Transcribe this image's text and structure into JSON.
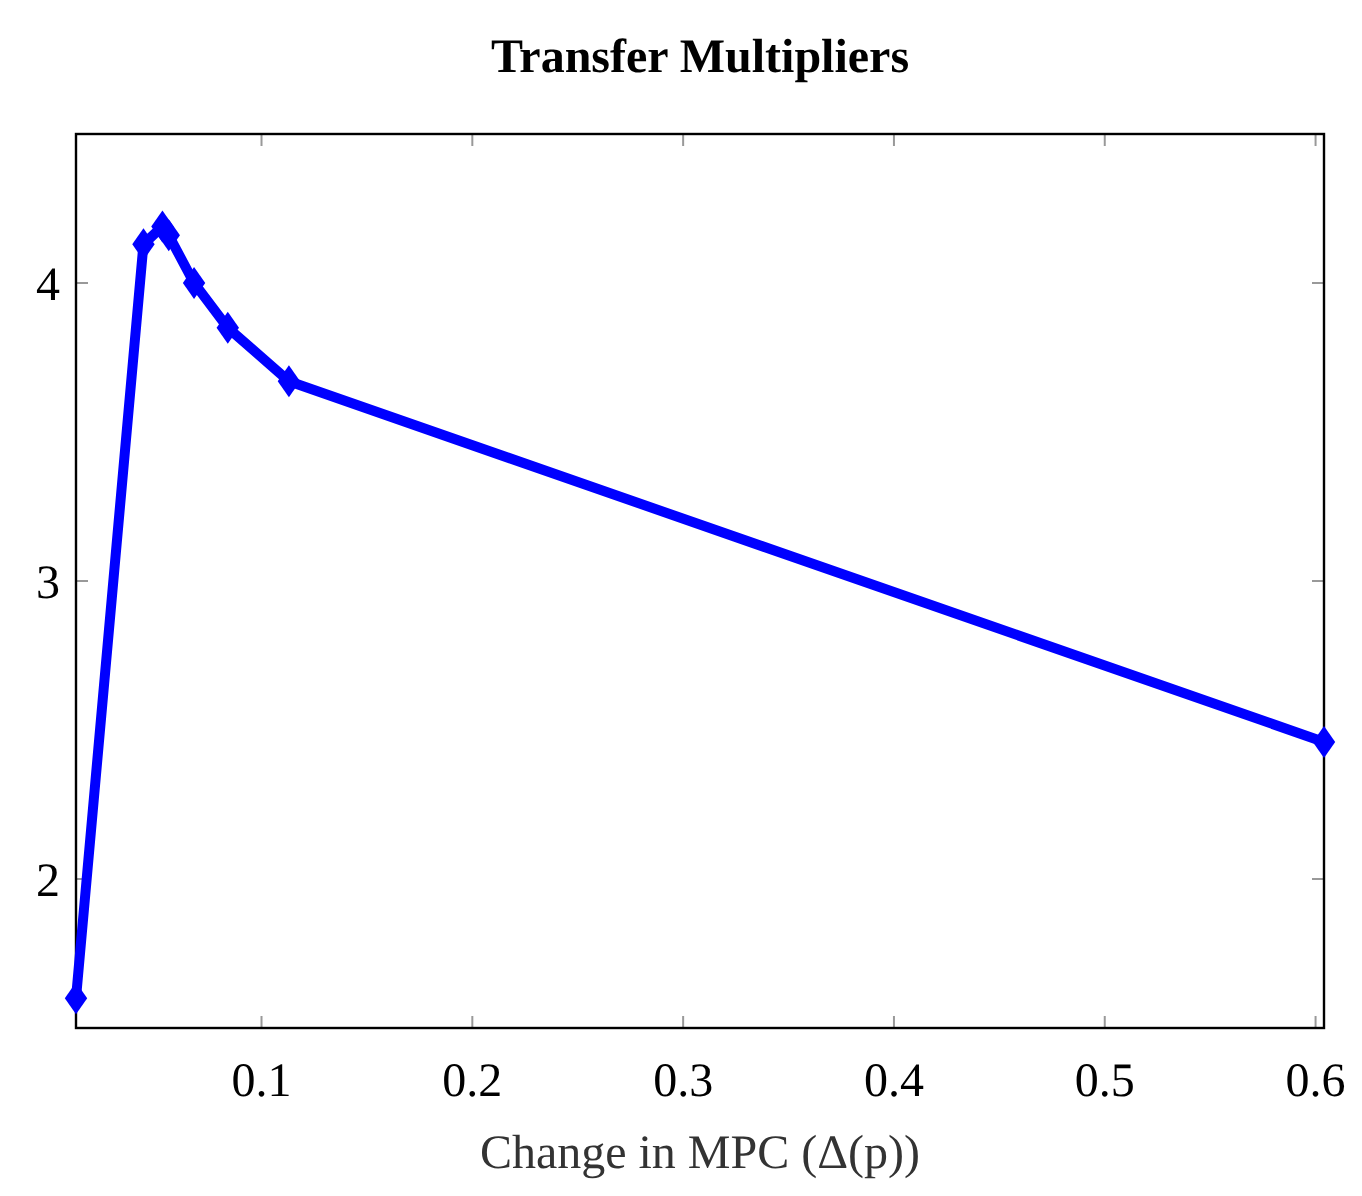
{
  "chart_data": {
    "type": "line",
    "title": "Transfer Multipliers",
    "xlabel": "Change in MPC (Δ(p))",
    "x": [
      0.012,
      0.044,
      0.053,
      0.056,
      0.068,
      0.084,
      0.113,
      0.604
    ],
    "series": [
      {
        "color": "#0000ff",
        "values": [
          1.6,
          4.13,
          4.19,
          4.16,
          4.0,
          3.85,
          3.67,
          2.46
        ]
      }
    ],
    "xlim": [
      0.012,
      0.604
    ],
    "ylim": [
      1.5,
      4.5
    ],
    "xticks": [
      0.1,
      0.2,
      0.3,
      0.4,
      0.5,
      0.6
    ],
    "yticks": [
      2,
      3,
      4
    ],
    "grid": false,
    "marker": "diamond",
    "line_style": "solid"
  }
}
